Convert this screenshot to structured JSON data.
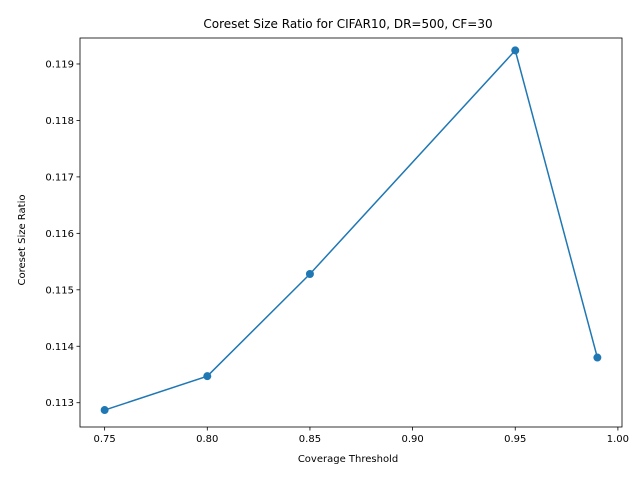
{
  "chart_data": {
    "type": "line",
    "title": "Coreset Size Ratio for CIFAR10, DR=500, CF=30",
    "xlabel": "Coverage Threshold",
    "ylabel": "Coreset Size Ratio",
    "x": [
      0.75,
      0.8,
      0.85,
      0.95,
      0.99
    ],
    "series": [
      {
        "values": [
          0.11287,
          0.11347,
          0.11528,
          0.11924,
          0.1138
        ]
      }
    ],
    "xlim": [
      0.738,
      1.002
    ],
    "ylim": [
      0.11257,
      0.11946
    ],
    "xticks": [
      "0.75",
      "0.80",
      "0.85",
      "0.90",
      "0.95",
      "1.00"
    ],
    "yticks": [
      "0.113",
      "0.114",
      "0.115",
      "0.116",
      "0.117",
      "0.118",
      "0.119"
    ],
    "grid": false,
    "legend": "none",
    "marker": "circle",
    "colors": {
      "line": "#1f77b4",
      "axes": "#000000"
    }
  }
}
